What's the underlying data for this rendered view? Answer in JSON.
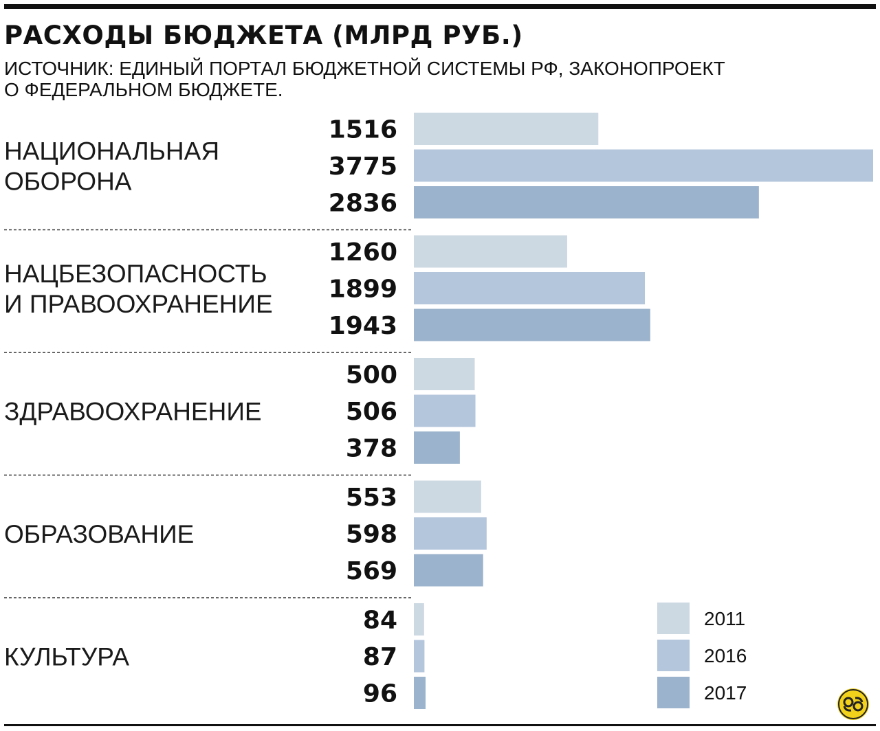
{
  "title": "РАСХОДЫ БЮДЖЕТА (МЛРД РУБ.)",
  "source_line_1": "ИСТОЧНИК: ЕДИНЫЙ ПОРТАЛ БЮДЖЕТНОЙ СИСТЕМЫ РФ, ЗАКОНОПРОЕКТ",
  "source_line_2": "О ФЕДЕРАЛЬНОМ БЮДЖЕТЕ.",
  "colors": {
    "2011": "#ccd8e2",
    "2016": "#b4c6dc",
    "2017": "#9bb3cc"
  },
  "logo_icon": "coin-logo-icon",
  "chart_data": {
    "type": "bar",
    "orientation": "horizontal",
    "title": "РАСХОДЫ БЮДЖЕТА (МЛРД РУБ.)",
    "categories": [
      {
        "lines": [
          "НАЦИОНАЛЬНАЯ",
          "ОБОРОНА"
        ]
      },
      {
        "lines": [
          "НАЦБЕЗОПАСНОСТЬ",
          "И ПРАВООХРАНЕНИЕ"
        ]
      },
      {
        "lines": [
          "ЗДРАВООХРАНЕНИЕ"
        ]
      },
      {
        "lines": [
          "ОБРАЗОВАНИЕ"
        ]
      },
      {
        "lines": [
          "КУЛЬТУРА"
        ]
      }
    ],
    "series": [
      {
        "name": "2011",
        "values": [
          1516,
          1260,
          500,
          553,
          84
        ]
      },
      {
        "name": "2016",
        "values": [
          3775,
          1899,
          506,
          598,
          87
        ]
      },
      {
        "name": "2017",
        "values": [
          2836,
          1943,
          378,
          569,
          96
        ]
      }
    ],
    "xlim": [
      0,
      3775
    ],
    "grid": false,
    "value_labels": true,
    "legend_position": "bottom-right"
  }
}
